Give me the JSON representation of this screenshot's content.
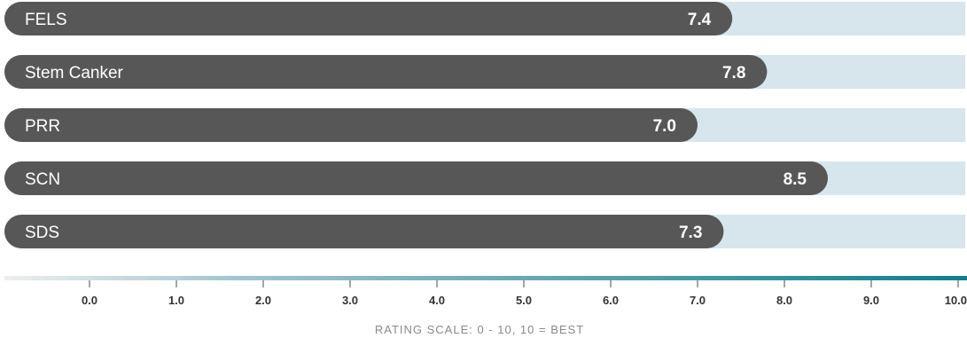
{
  "chart_data": {
    "type": "bar",
    "orientation": "horizontal",
    "categories": [
      "FELS",
      "Stem Canker",
      "PRR",
      "SCN",
      "SDS"
    ],
    "values": [
      7.4,
      7.8,
      7.0,
      8.5,
      7.3
    ],
    "value_labels": [
      "7.4",
      "7.8",
      "7.0",
      "8.5",
      "7.3"
    ],
    "xlim": [
      0,
      10
    ],
    "x_ticks": [
      "0.0",
      "1.0",
      "2.0",
      "3.0",
      "4.0",
      "5.0",
      "6.0",
      "7.0",
      "8.0",
      "9.0",
      "10.0"
    ],
    "xlabel": "RATING SCALE: 0 - 10, 10 = BEST",
    "grid": false,
    "legend": "none"
  },
  "colors": {
    "bar": "#575757",
    "track": "#d6e6ec",
    "axis_gradient_start": "#eeeeee",
    "axis_gradient_mid": "#9fc4cf",
    "axis_gradient_end": "#0f7f8e",
    "label_text": "#ffffff"
  }
}
